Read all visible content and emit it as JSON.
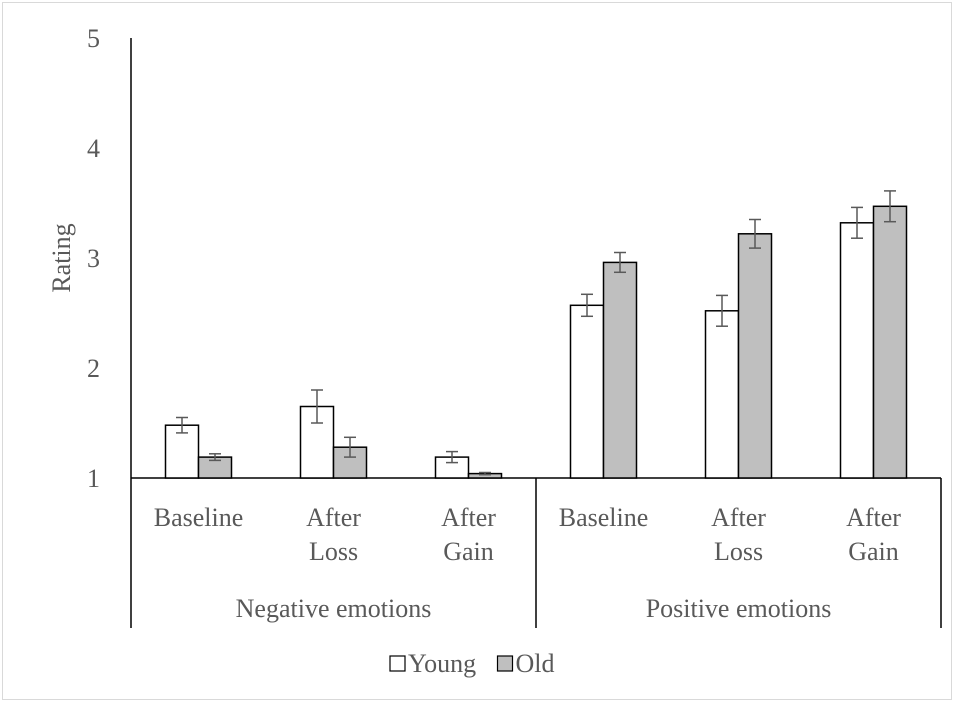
{
  "chart_data": {
    "type": "bar",
    "ylabel": "Rating",
    "ylim": [
      1,
      5
    ],
    "yticks": [
      "1",
      "2",
      "3",
      "4",
      "5"
    ],
    "groups": [
      {
        "label": "Negative emotions",
        "categories": [
          [
            "Baseline"
          ],
          [
            "After",
            "Loss"
          ],
          [
            "After",
            "Gain"
          ]
        ]
      },
      {
        "label": "Positive emotions",
        "categories": [
          [
            "Baseline"
          ],
          [
            "After",
            "Loss"
          ],
          [
            "After",
            "Gain"
          ]
        ]
      }
    ],
    "series": [
      {
        "name": "Young",
        "color": "#ffffff",
        "values": [
          1.48,
          1.65,
          1.19,
          2.57,
          2.52,
          3.32
        ],
        "errors": [
          0.07,
          0.15,
          0.05,
          0.1,
          0.14,
          0.14
        ]
      },
      {
        "name": "Old",
        "color": "#bfbfbf",
        "values": [
          1.19,
          1.28,
          1.04,
          2.96,
          3.22,
          3.47
        ],
        "errors": [
          0.03,
          0.09,
          0.01,
          0.09,
          0.13,
          0.14
        ]
      }
    ],
    "legend_position": "bottom",
    "grid": false
  }
}
